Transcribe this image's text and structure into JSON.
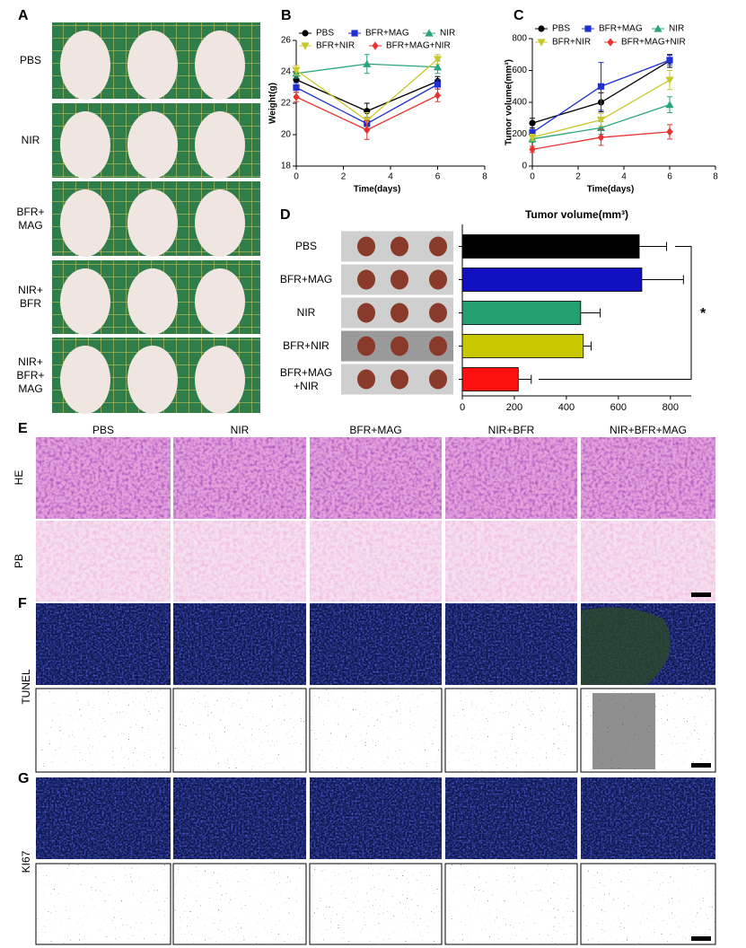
{
  "figure": {
    "panel_labels": [
      "A",
      "B",
      "C",
      "D",
      "E",
      "F",
      "G"
    ],
    "panel_a_rows": [
      "PBS",
      "NIR",
      "BFR+ MAG",
      "NIR+ BFR",
      "NIR+ BFR+ MAG"
    ],
    "histology_columns": [
      "PBS",
      "NIR",
      "BFR+MAG",
      "NIR+BFR",
      "NIR+BFR+MAG"
    ],
    "histology_rows": [
      "HE",
      "PB",
      "TUNEL",
      "KI67"
    ]
  },
  "chart_data": [
    {
      "type": "line",
      "xlabel": "Time(days)",
      "ylabel": "Weight(g)",
      "x": [
        0,
        3,
        6
      ],
      "xlim": [
        0,
        8
      ],
      "xticks": [
        0,
        2,
        4,
        6,
        8
      ],
      "ylim": [
        18,
        26
      ],
      "yticks": [
        18,
        20,
        22,
        24,
        26
      ],
      "series": [
        {
          "name": "PBS",
          "color": "#000000",
          "marker": "circle",
          "values": [
            23.5,
            21.5,
            23.4
          ],
          "errors": [
            0.4,
            0.5,
            0.3
          ]
        },
        {
          "name": "BFR+MAG",
          "color": "#1f2fd0",
          "marker": "square",
          "values": [
            23.0,
            20.7,
            23.2
          ],
          "errors": [
            0.3,
            0.4,
            0.3
          ]
        },
        {
          "name": "NIR",
          "color": "#2aa57a",
          "marker": "triangle",
          "values": [
            23.9,
            24.5,
            24.3
          ],
          "errors": [
            0.3,
            0.6,
            0.4
          ]
        },
        {
          "name": "BFR+NIR",
          "color": "#c8c82a",
          "marker": "triangle-down",
          "values": [
            24.1,
            20.9,
            24.8
          ],
          "errors": [
            0.3,
            0.5,
            0.3
          ]
        },
        {
          "name": "BFR+MAG+NIR",
          "color": "#e8322e",
          "marker": "diamond",
          "values": [
            22.4,
            20.3,
            22.5
          ],
          "errors": [
            0.3,
            0.6,
            0.4
          ]
        }
      ]
    },
    {
      "type": "line",
      "xlabel": "Time(days)",
      "ylabel": "Tumor volume(mm³)",
      "x": [
        0,
        3,
        6
      ],
      "xlim": [
        0,
        8
      ],
      "xticks": [
        0,
        2,
        4,
        6,
        8
      ],
      "ylim": [
        0,
        800
      ],
      "yticks": [
        0,
        200,
        400,
        600,
        800
      ],
      "series": [
        {
          "name": "PBS",
          "color": "#000000",
          "marker": "circle",
          "values": [
            270,
            400,
            660
          ],
          "errors": [
            30,
            60,
            40
          ]
        },
        {
          "name": "BFR+MAG",
          "color": "#1f2fd0",
          "marker": "square",
          "values": [
            210,
            500,
            665
          ],
          "errors": [
            20,
            150,
            30
          ]
        },
        {
          "name": "NIR",
          "color": "#2aa57a",
          "marker": "triangle",
          "values": [
            170,
            240,
            385
          ],
          "errors": [
            20,
            40,
            50
          ]
        },
        {
          "name": "BFR+NIR",
          "color": "#c8c82a",
          "marker": "triangle-down",
          "values": [
            180,
            290,
            540
          ],
          "errors": [
            20,
            40,
            60
          ]
        },
        {
          "name": "BFR+MAG+NIR",
          "color": "#e8322e",
          "marker": "diamond",
          "values": [
            105,
            180,
            215
          ],
          "errors": [
            20,
            50,
            45
          ]
        }
      ]
    },
    {
      "type": "hbar",
      "title": "Tumor volume(mm³)",
      "categories": [
        "PBS",
        "BFR+MAG",
        "NIR",
        "BFR+NIR",
        "BFR+MAG +NIR"
      ],
      "values": [
        680,
        690,
        455,
        465,
        215
      ],
      "errors": [
        105,
        160,
        75,
        30,
        50
      ],
      "colors": [
        "#000000",
        "#1010c0",
        "#22a070",
        "#c8c800",
        "#ff1010"
      ],
      "xlim": [
        0,
        880
      ],
      "xticks": [
        0,
        200,
        400,
        600,
        800
      ],
      "annotation": "*"
    }
  ]
}
